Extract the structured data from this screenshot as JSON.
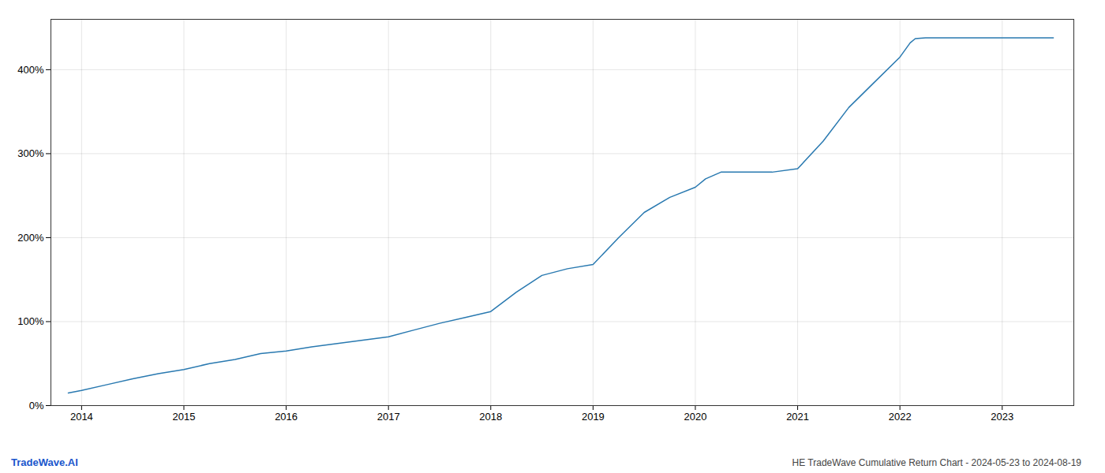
{
  "chart_data": {
    "type": "line",
    "title": "HE TradeWave Cumulative Return Chart - 2024-05-23 to 2024-08-19",
    "annotations": [
      "TradeWave.AI"
    ],
    "x": [
      2013.87,
      2014.0,
      2014.25,
      2014.5,
      2014.75,
      2015.0,
      2015.25,
      2015.5,
      2015.75,
      2016.0,
      2016.25,
      2016.5,
      2016.75,
      2017.0,
      2017.25,
      2017.5,
      2017.75,
      2018.0,
      2018.25,
      2018.5,
      2018.75,
      2019.0,
      2019.25,
      2019.5,
      2019.75,
      2020.0,
      2020.1,
      2020.25,
      2020.5,
      2020.75,
      2021.0,
      2021.25,
      2021.5,
      2021.75,
      2022.0,
      2022.1,
      2022.15,
      2022.25,
      2022.5,
      2022.75,
      2023.0,
      2023.5
    ],
    "values": [
      15,
      18,
      25,
      32,
      38,
      43,
      50,
      55,
      62,
      65,
      70,
      74,
      78,
      82,
      90,
      98,
      105,
      112,
      135,
      155,
      163,
      168,
      200,
      230,
      248,
      260,
      270,
      278,
      278,
      278,
      282,
      315,
      355,
      385,
      415,
      432,
      437,
      438,
      438,
      438,
      438,
      438
    ],
    "color": "#2979b0",
    "xlim": [
      2013.7,
      2023.7
    ],
    "xticks": [
      2014,
      2015,
      2016,
      2017,
      2018,
      2019,
      2020,
      2021,
      2022,
      2023
    ],
    "ylim": [
      0,
      460
    ],
    "yticks": [
      {
        "value": 0,
        "label": "0%"
      },
      {
        "value": 100,
        "label": "100%"
      },
      {
        "value": 200,
        "label": "200%"
      },
      {
        "value": 300,
        "label": "300%"
      },
      {
        "value": 400,
        "label": "400%"
      }
    ],
    "grid": true
  }
}
